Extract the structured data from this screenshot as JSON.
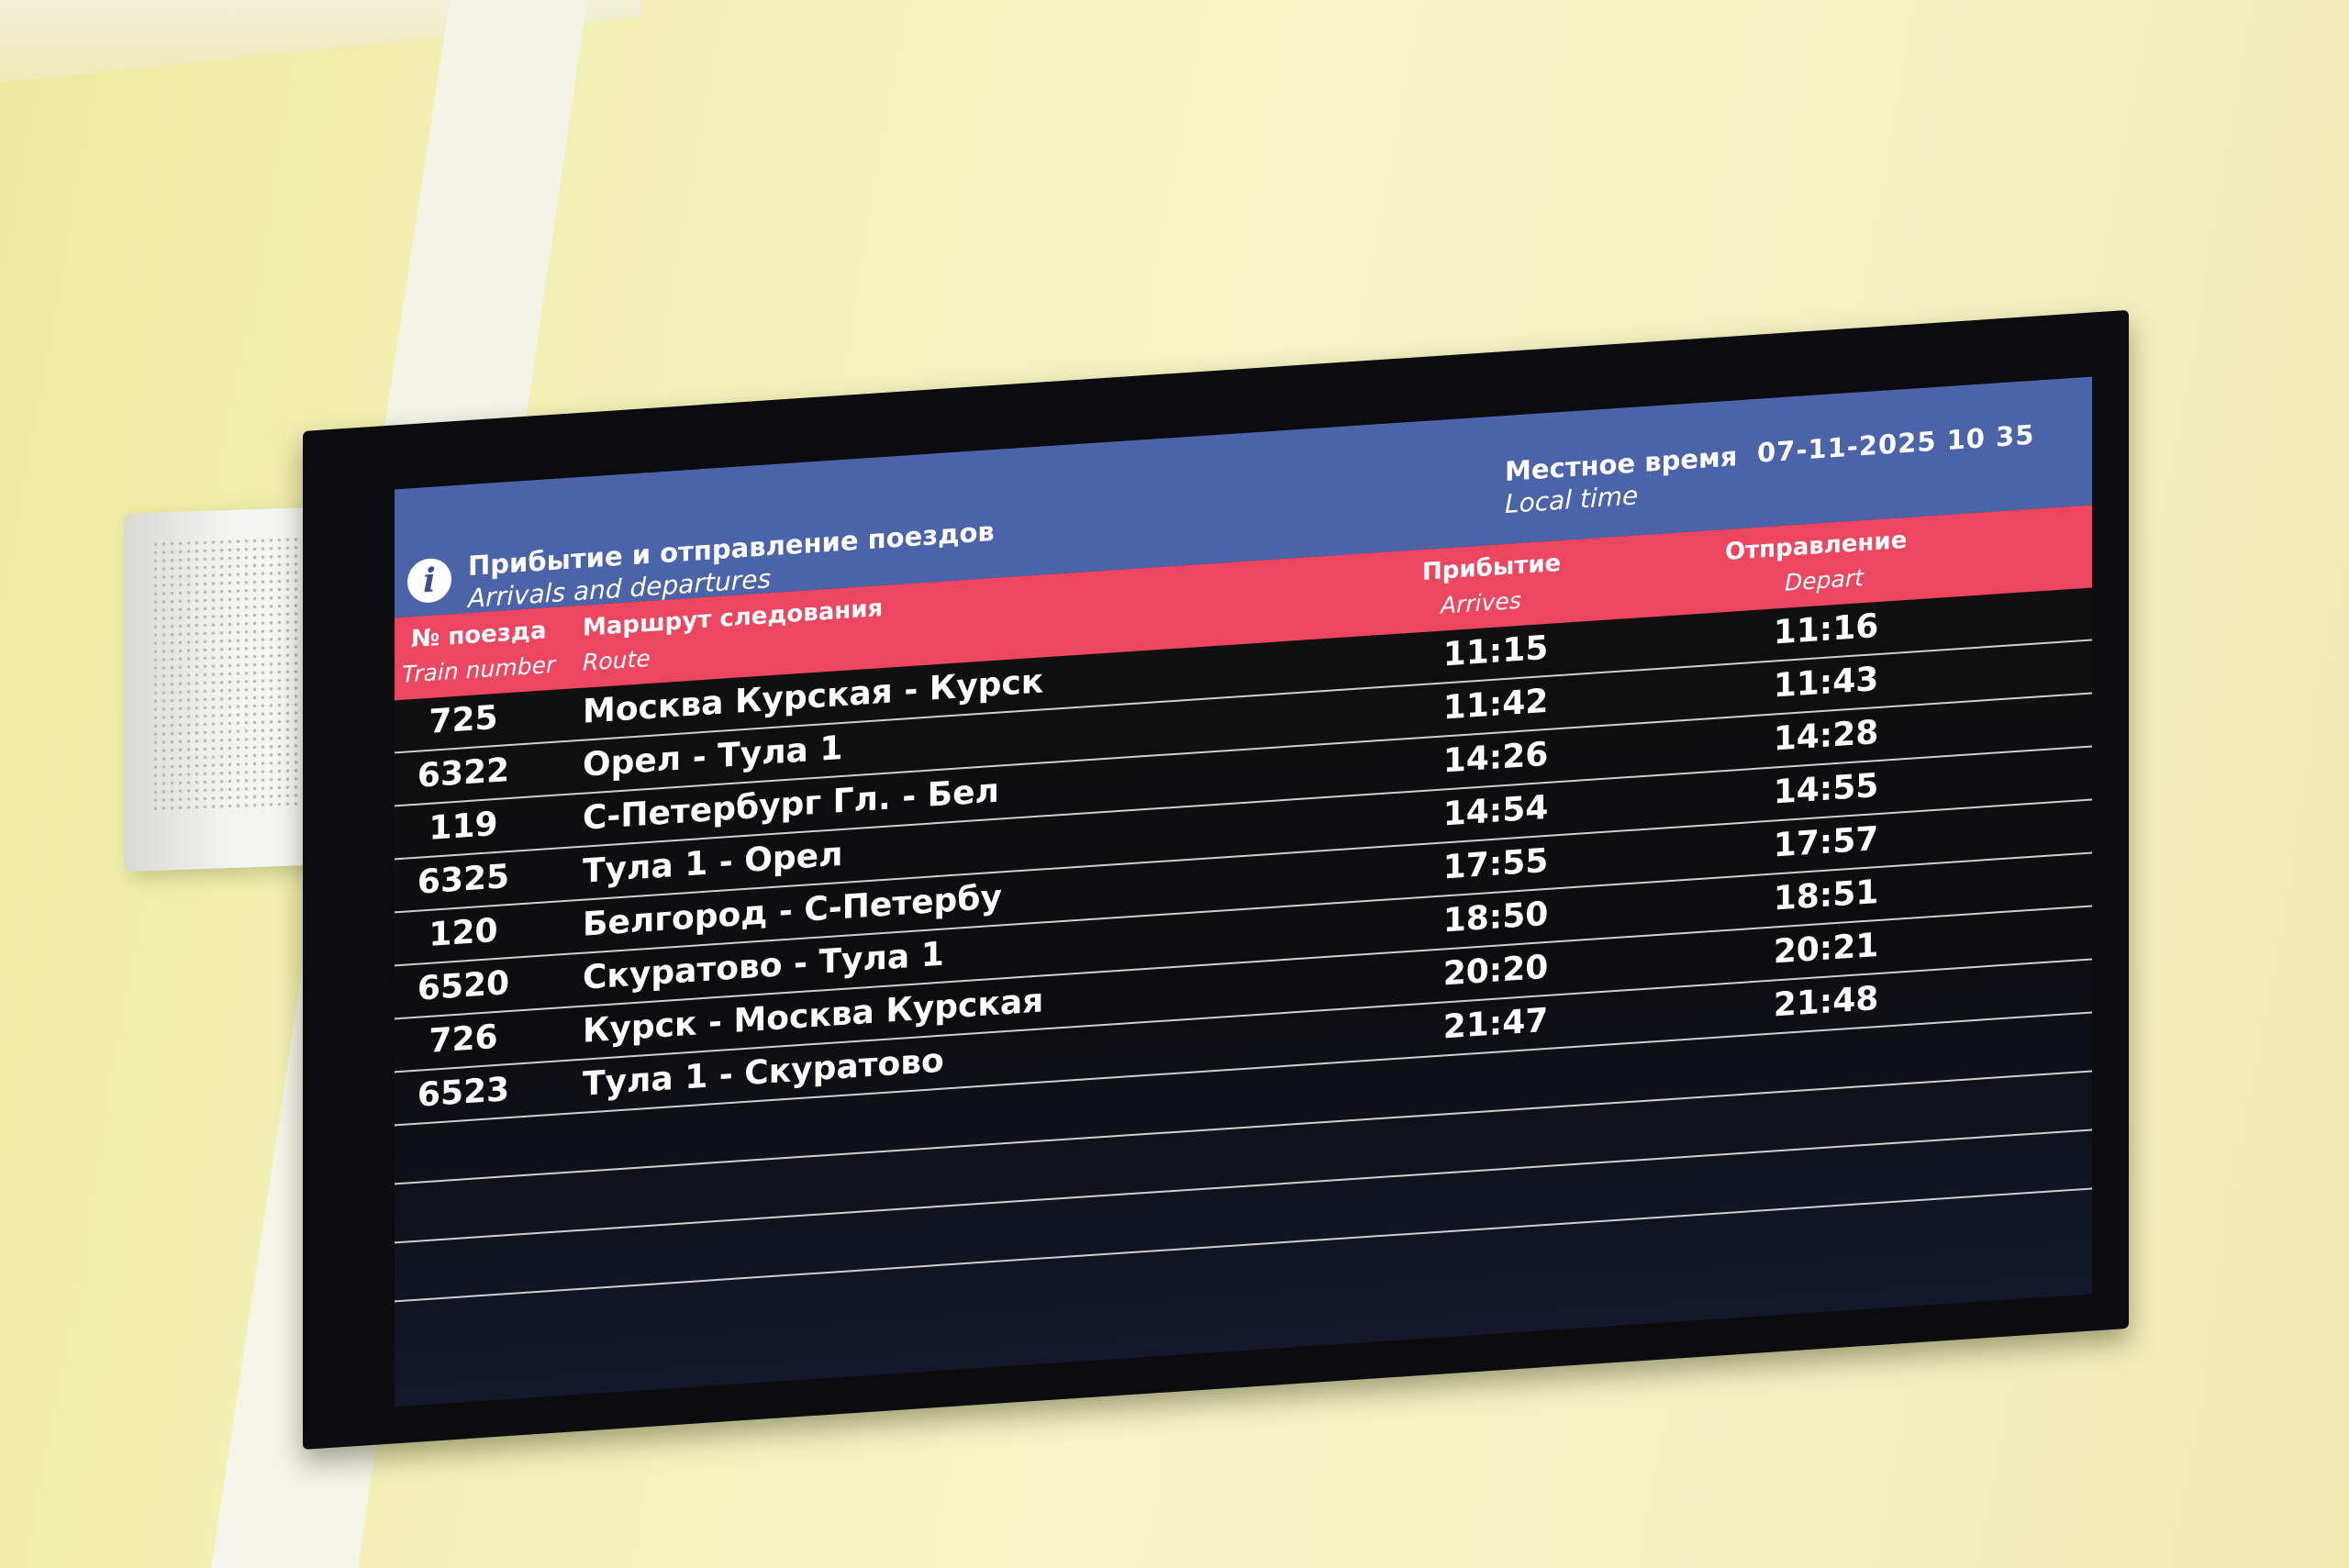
{
  "board": {
    "title_ru": "Прибытие и отправление поездов",
    "title_en": "Arrivals and departures",
    "info_icon": "info-icon",
    "local_time_ru": "Местное время",
    "local_time_en": "Local time",
    "datetime": "07-11-2025 10 35",
    "colors": {
      "header_blue": "#4b63a8",
      "header_red": "#ec4661",
      "background": "#0d0d10"
    },
    "columns": {
      "train_ru": "№ поезда",
      "train_en": "Train number",
      "route_ru": "Маршрут следования",
      "route_en": "Route",
      "arrives_ru": "Прибытие",
      "arrives_en": "Arrives",
      "depart_ru": "Отправление",
      "depart_en": "Depart"
    },
    "rows": [
      {
        "train": "725",
        "route": "Москва Курская - Курск",
        "arrives": "11:15",
        "depart": "11:16"
      },
      {
        "train": "6322",
        "route": "Орел - Тула 1",
        "arrives": "11:42",
        "depart": "11:43"
      },
      {
        "train": "119",
        "route": "С-Петербург Гл. - Бел",
        "arrives": "14:26",
        "depart": "14:28"
      },
      {
        "train": "6325",
        "route": "Тула 1 - Орел",
        "arrives": "14:54",
        "depart": "14:55"
      },
      {
        "train": "120",
        "route": "Белгород - С-Петербу",
        "arrives": "17:55",
        "depart": "17:57"
      },
      {
        "train": "6520",
        "route": "Скуратово - Тула 1",
        "arrives": "18:50",
        "depart": "18:51"
      },
      {
        "train": "726",
        "route": "Курск - Москва Курская",
        "arrives": "20:20",
        "depart": "20:21"
      },
      {
        "train": "6523",
        "route": "Тула 1 - Скуратово",
        "arrives": "21:47",
        "depart": "21:48"
      }
    ]
  }
}
